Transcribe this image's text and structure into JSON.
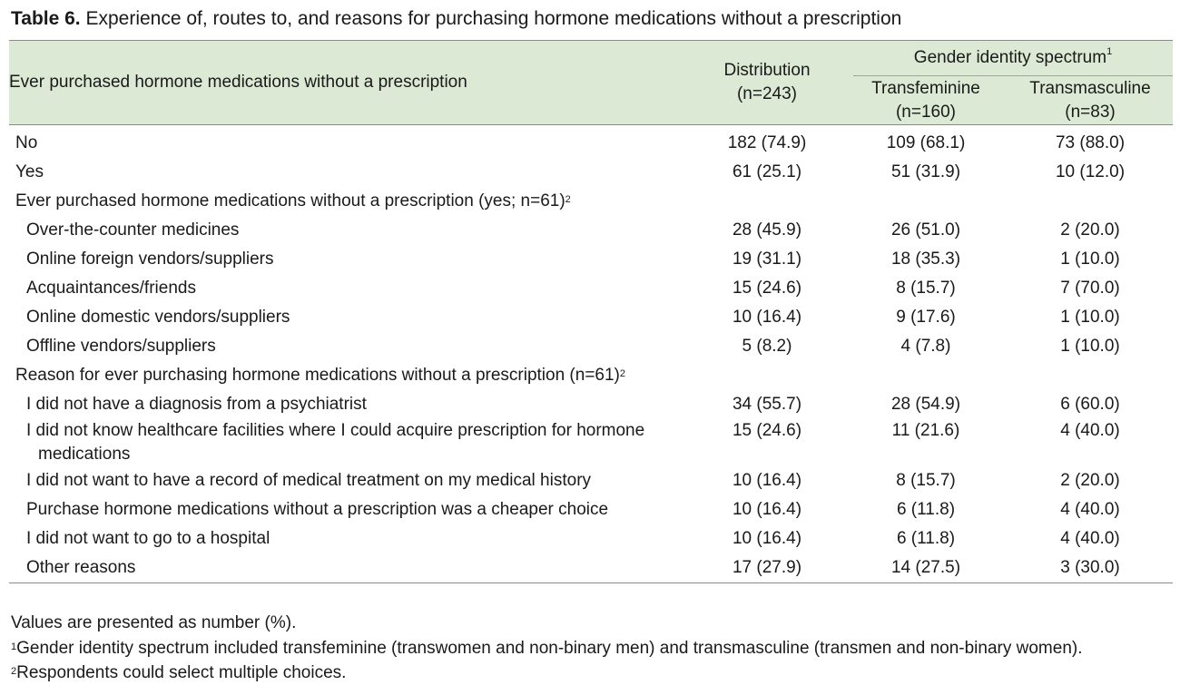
{
  "title": {
    "bold": "Table 6.",
    "text": " Experience of, routes to, and reasons for purchasing hormone medications without a prescription"
  },
  "header": {
    "row_label": "Ever purchased hormone medications without a prescription",
    "distribution_label": "Distribution",
    "distribution_n": "(n=243)",
    "group_label": "Gender identity spectrum",
    "group_sup": "1",
    "transfeminine_label": "Transfeminine",
    "transfeminine_n": "(n=160)",
    "transmasculine_label": "Transmasculine",
    "transmasculine_n": "(n=83)"
  },
  "rows": [
    {
      "label": "No",
      "dist": "182 (74.9)",
      "tf": "109 (68.1)",
      "tm": "73 (88.0)"
    },
    {
      "label": "Yes",
      "dist": "61 (25.1)",
      "tf": "51 (31.9)",
      "tm": "10 (12.0)"
    }
  ],
  "section_routes": {
    "label": "Ever purchased hormone medications without a prescription (yes; n=61)",
    "sup": "2",
    "rows": [
      {
        "label": "Over-the-counter medicines",
        "dist": "28 (45.9)",
        "tf": "26 (51.0)",
        "tm": "2 (20.0)"
      },
      {
        "label": "Online foreign vendors/suppliers",
        "dist": "19 (31.1)",
        "tf": "18 (35.3)",
        "tm": "1 (10.0)"
      },
      {
        "label": "Acquaintances/friends",
        "dist": "15 (24.6)",
        "tf": "8 (15.7)",
        "tm": "7 (70.0)"
      },
      {
        "label": "Online domestic vendors/suppliers",
        "dist": "10 (16.4)",
        "tf": "9 (17.6)",
        "tm": "1 (10.0)"
      },
      {
        "label": "Offline vendors/suppliers",
        "dist": "5 (8.2)",
        "tf": "4 (7.8)",
        "tm": "1 (10.0)"
      }
    ]
  },
  "section_reasons": {
    "label": "Reason for ever purchasing hormone medications without a prescription (n=61)",
    "sup": "2",
    "rows": [
      {
        "label": "I did not have a diagnosis from a psychiatrist",
        "dist": "34 (55.7)",
        "tf": "28 (54.9)",
        "tm": "6 (60.0)"
      },
      {
        "label": "I did not know healthcare facilities where I could acquire prescription for hormone medications",
        "dist": "15 (24.6)",
        "tf": "11 (21.6)",
        "tm": "4 (40.0)"
      },
      {
        "label": "I did not want to have a record of medical treatment on my medical history",
        "dist": "10 (16.4)",
        "tf": "8 (15.7)",
        "tm": "2 (20.0)"
      },
      {
        "label": "Purchase hormone medications without a prescription was a cheaper choice",
        "dist": "10 (16.4)",
        "tf": "6 (11.8)",
        "tm": "4 (40.0)"
      },
      {
        "label": "I did not want to go to a hospital",
        "dist": "10 (16.4)",
        "tf": "6 (11.8)",
        "tm": "4 (40.0)"
      },
      {
        "label": "Other reasons",
        "dist": "17 (27.9)",
        "tf": "14 (27.5)",
        "tm": "3 (30.0)"
      }
    ]
  },
  "footnotes": {
    "values_note": "Values are presented as number (%).",
    "note1_sup": "1",
    "note1": "Gender identity spectrum included transfeminine (transwomen and non-binary men) and transmasculine (transmen and non-binary women).",
    "note2_sup": "2",
    "note2": "Respondents could select multiple choices."
  }
}
